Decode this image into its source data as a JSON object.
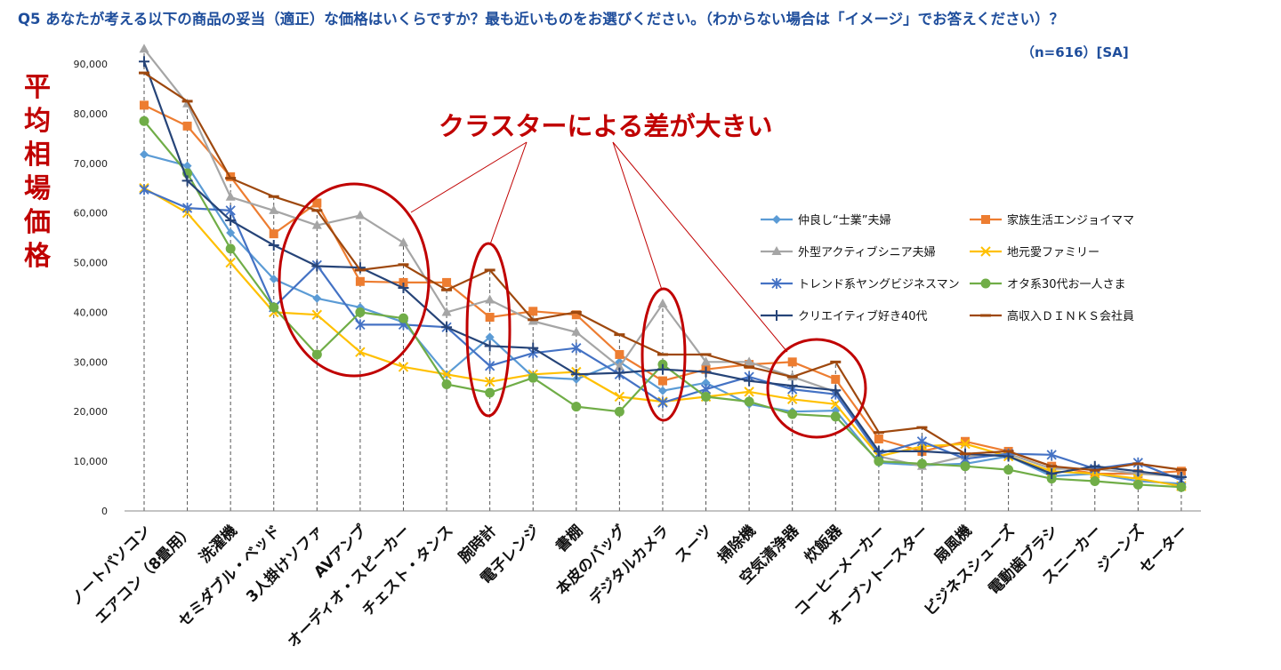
{
  "header": {
    "question": "Q5 あなたが考える以下の商品の妥当（適正）な価格はいくらですか？最も近いものをお選びください。（わからない場合は「イメージ」でお答えください）？",
    "sample": "（n=616）[SA]"
  },
  "callout": "クラスターによる差が大きい",
  "colors": {
    "title": "#1f4e9c",
    "highlight": "#c00000",
    "guide": "#555555"
  },
  "chart_data": {
    "type": "line",
    "ylabel": "平均相場価格",
    "ylim": [
      0,
      90000
    ],
    "yticks": [
      0,
      10000,
      20000,
      30000,
      40000,
      50000,
      60000,
      70000,
      80000,
      90000
    ],
    "ytick_labels": [
      "0",
      "10,000",
      "20,000",
      "30,000",
      "40,000",
      "50,000",
      "60,000",
      "70,000",
      "80,000",
      "90,000"
    ],
    "grid": false,
    "legend": "right-middle",
    "categories": [
      "ノートパソコン",
      "エアコン（8畳用）",
      "洗濯機",
      "セミダブル・ベッド",
      "3人掛けソファ",
      "AVアンプ",
      "オーディオ・スピーカー",
      "チェスト・タンス",
      "腕時計",
      "電子レンジ",
      "書棚",
      "本皮のバッグ",
      "デジタルカメラ",
      "スーツ",
      "掃除機",
      "空気清浄器",
      "炊飯器",
      "コーヒーメーカー",
      "オーブントースター",
      "扇風機",
      "ビジネスシューズ",
      "電動歯ブラシ",
      "スニーカー",
      "ジーンズ",
      "セーター"
    ],
    "series": [
      {
        "name": "仲良し“士業”夫婦",
        "color": "#5b9bd5",
        "marker": "diamond",
        "values": [
          71800,
          69500,
          56000,
          46700,
          42800,
          41000,
          38000,
          27500,
          35000,
          27000,
          26500,
          30000,
          24200,
          25800,
          21500,
          20000,
          20200,
          9700,
          9200,
          9500,
          11000,
          7000,
          7500,
          6000,
          5500
        ]
      },
      {
        "name": "家族生活エンジョイママ",
        "color": "#ed7d31",
        "marker": "square",
        "values": [
          81700,
          77500,
          67300,
          55800,
          62000,
          46200,
          46000,
          46000,
          39000,
          40200,
          39500,
          31500,
          26200,
          28500,
          29500,
          30000,
          26500,
          14500,
          12000,
          14000,
          12000,
          9000,
          7500,
          7500,
          8000
        ]
      },
      {
        "name": "外型アクティブシニア夫婦",
        "color": "#a5a5a5",
        "marker": "triangle",
        "values": [
          93000,
          82000,
          63200,
          60500,
          57500,
          59500,
          54000,
          40000,
          42500,
          38200,
          36000,
          29000,
          41700,
          30000,
          30000,
          27000,
          24000,
          11000,
          9000,
          11000,
          11500,
          8500,
          8500,
          7500,
          7000
        ]
      },
      {
        "name": "地元愛ファミリー",
        "color": "#ffc000",
        "marker": "x",
        "values": [
          65000,
          60000,
          50000,
          40000,
          39500,
          32000,
          29000,
          27500,
          26000,
          27500,
          28000,
          23000,
          22000,
          23000,
          24000,
          22500,
          21500,
          11000,
          13000,
          13500,
          11000,
          8000,
          7500,
          6500,
          5000
        ]
      },
      {
        "name": "トレンド系ヤングビジネスマン",
        "color": "#4472c4",
        "marker": "star",
        "values": [
          64700,
          61000,
          60500,
          41000,
          49500,
          37500,
          37500,
          37000,
          29200,
          31800,
          32800,
          27500,
          21800,
          24500,
          27000,
          24500,
          23500,
          11500,
          14000,
          10500,
          11500,
          11300,
          8500,
          9700,
          6200
        ]
      },
      {
        "name": "オタ系30代お一人さま",
        "color": "#70ad47",
        "marker": "circle",
        "values": [
          78500,
          68000,
          52800,
          41000,
          31500,
          40000,
          38800,
          25500,
          23800,
          26800,
          21000,
          20000,
          29500,
          23000,
          22000,
          19500,
          19000,
          10000,
          9500,
          9000,
          8300,
          6500,
          6000,
          5300,
          4800
        ]
      },
      {
        "name": "クリエイティブ好き40代",
        "color": "#264478",
        "marker": "plus",
        "values": [
          90500,
          66500,
          58500,
          53500,
          49300,
          49000,
          44900,
          37000,
          33200,
          32800,
          27500,
          27800,
          28500,
          28000,
          26200,
          25200,
          24300,
          12000,
          12000,
          11500,
          11000,
          7500,
          9000,
          8000,
          6800
        ]
      },
      {
        "name": "高収入ＤＩＮＫＳ会社員",
        "color": "#9e480e",
        "marker": "dash",
        "values": [
          88200,
          82500,
          67000,
          63300,
          60500,
          48500,
          49600,
          44500,
          48500,
          38500,
          40000,
          35500,
          31500,
          31500,
          29000,
          27000,
          30000,
          15800,
          16800,
          11500,
          12000,
          9000,
          8200,
          9500,
          8300
        ]
      }
    ]
  }
}
